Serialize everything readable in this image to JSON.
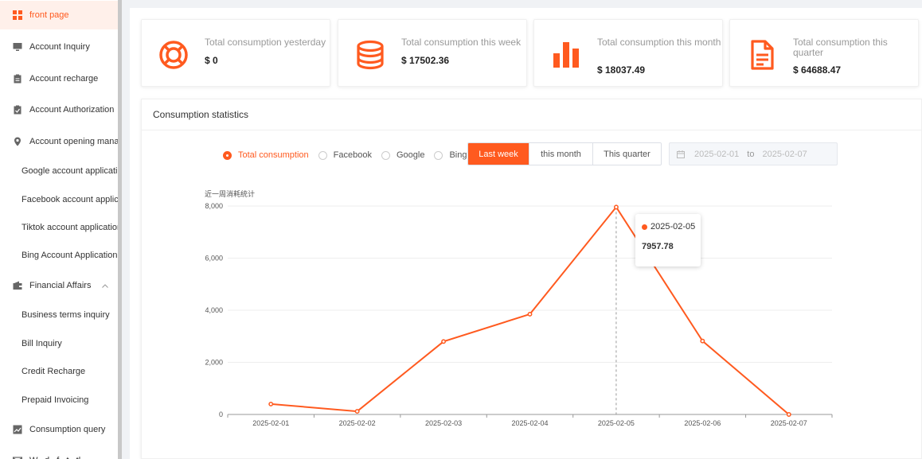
{
  "sidebar": {
    "items": [
      {
        "label": "front page",
        "icon": "grid-icon",
        "active": true
      },
      {
        "label": "Account Inquiry",
        "icon": "monitor-icon"
      },
      {
        "label": "Account recharge",
        "icon": "clipboard-icon"
      },
      {
        "label": "Account Authorization",
        "icon": "clipboard-check-icon"
      },
      {
        "label": "Account opening mana",
        "icon": "location-pin-icon"
      },
      {
        "label": "Google account applicatio",
        "sub": true
      },
      {
        "label": "Facebook account applica",
        "sub": true
      },
      {
        "label": "Tiktok account application",
        "sub": true
      },
      {
        "label": "Bing Account Application",
        "sub": true
      },
      {
        "label": "Financial Affairs",
        "icon": "wallet-icon",
        "expanded": true
      },
      {
        "label": "Business terms inquiry",
        "sub": true
      },
      {
        "label": "Bill Inquiry",
        "sub": true
      },
      {
        "label": "Credit Recharge",
        "sub": true
      },
      {
        "label": "Prepaid Invoicing",
        "sub": true
      },
      {
        "label": "Consumption query",
        "icon": "chart-icon"
      },
      {
        "label": "W...d...f...t...tl...",
        "icon": "mail-icon"
      }
    ]
  },
  "cards": [
    {
      "title": "Total consumption yesterday",
      "value": "$ 0",
      "icon": "lifebuoy-icon"
    },
    {
      "title": "Total consumption this week",
      "value": "$ 17502.36",
      "icon": "coins-stack-icon"
    },
    {
      "title": "Total consumption this month",
      "value": "$ 18037.49",
      "icon": "bar-chart-icon"
    },
    {
      "title": "Total consumption this quarter",
      "value": "$ 64688.47",
      "icon": "document-icon"
    }
  ],
  "panel": {
    "title": "Consumption statistics",
    "radios": [
      {
        "label": "Total consumption",
        "selected": true
      },
      {
        "label": "Facebook",
        "selected": false
      },
      {
        "label": "Google",
        "selected": false
      },
      {
        "label": "Bing",
        "selected": false
      }
    ],
    "segments": [
      {
        "label": "Last week",
        "selected": true
      },
      {
        "label": "this month",
        "selected": false
      },
      {
        "label": "This quarter",
        "selected": false
      }
    ],
    "date_range": {
      "start": "2025-02-01",
      "separator": "to",
      "end": "2025-02-07"
    }
  },
  "colors": {
    "accent": "#ff5a1f"
  },
  "chart_data": {
    "type": "line",
    "title": "近一周消耗统计",
    "categories": [
      "2025-02-01",
      "2025-02-02",
      "2025-02-03",
      "2025-02-04",
      "2025-02-05",
      "2025-02-06",
      "2025-02-07"
    ],
    "series": [
      {
        "values": [
          400,
          120,
          2800,
          3850,
          7957.78,
          2820,
          0
        ]
      }
    ],
    "ylim": [
      0,
      8000
    ],
    "yticks": [
      "8,000",
      "6,000",
      "4,000",
      "2,000",
      "0"
    ],
    "grid": true,
    "tooltip": {
      "date": "2025-02-05",
      "value": "7957.78"
    }
  }
}
